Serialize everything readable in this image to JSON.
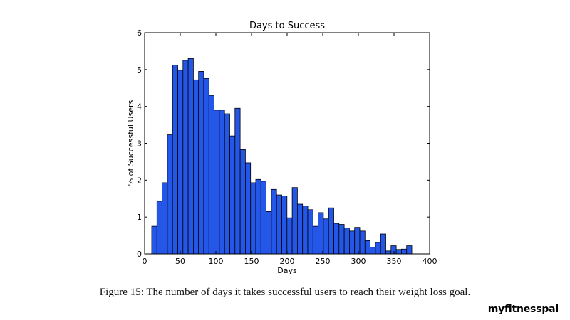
{
  "chart_data": {
    "type": "bar",
    "title": "Days to Success",
    "xlabel": "Days",
    "ylabel": "% of Successful Users",
    "xlim": [
      0,
      400
    ],
    "ylim": [
      0,
      6
    ],
    "x_ticks": [
      0,
      50,
      100,
      150,
      200,
      250,
      300,
      350,
      400
    ],
    "y_ticks": [
      0,
      1,
      2,
      3,
      4,
      5,
      6
    ],
    "bin_width": 7.3,
    "bin_start": 10,
    "values": [
      0.75,
      1.43,
      1.93,
      3.23,
      5.12,
      4.98,
      5.25,
      5.3,
      4.72,
      4.95,
      4.76,
      4.3,
      3.9,
      3.9,
      3.8,
      3.2,
      3.95,
      2.83,
      2.47,
      1.93,
      2.02,
      1.97,
      1.15,
      1.75,
      1.6,
      1.57,
      0.98,
      1.8,
      1.35,
      1.3,
      1.2,
      0.75,
      1.12,
      0.95,
      1.25,
      0.83,
      0.8,
      0.7,
      0.62,
      0.72,
      0.62,
      0.36,
      0.18,
      0.31,
      0.54,
      0.08,
      0.22,
      0.12,
      0.13,
      0.22
    ],
    "bar_color": "#2457e8",
    "edge_color": "#000000",
    "grid": false
  },
  "caption": "Figure 15: The number of days it takes successful users to reach their weight loss goal.",
  "brand": "myfitnesspal"
}
